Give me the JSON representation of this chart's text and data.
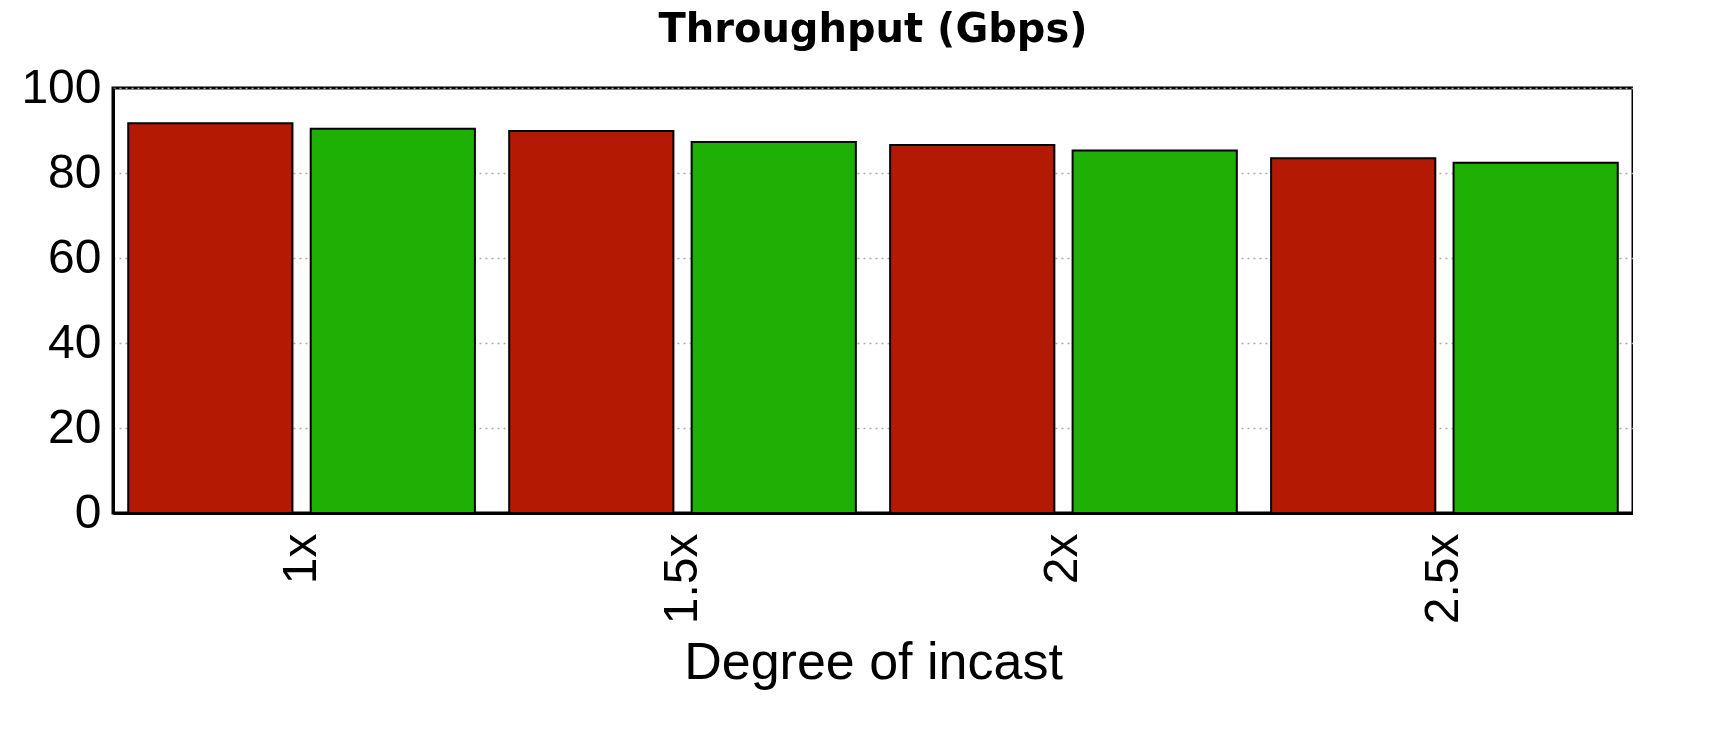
{
  "chart_data": {
    "type": "bar",
    "title": "Throughput (Gbps)",
    "xlabel": "Degree of incast",
    "categories": [
      "1x",
      "1.5x",
      "2x",
      "2.5x"
    ],
    "series": [
      {
        "color": "#b41904",
        "values": [
          91.7,
          89.9,
          86.6,
          83.5
        ]
      },
      {
        "color": "#1eb005",
        "values": [
          90.4,
          87.3,
          85.3,
          82.4
        ]
      }
    ],
    "ylim": [
      0,
      100
    ],
    "yticks": [
      0,
      20,
      40,
      60,
      80,
      100
    ],
    "grid": "y",
    "legend": false
  }
}
